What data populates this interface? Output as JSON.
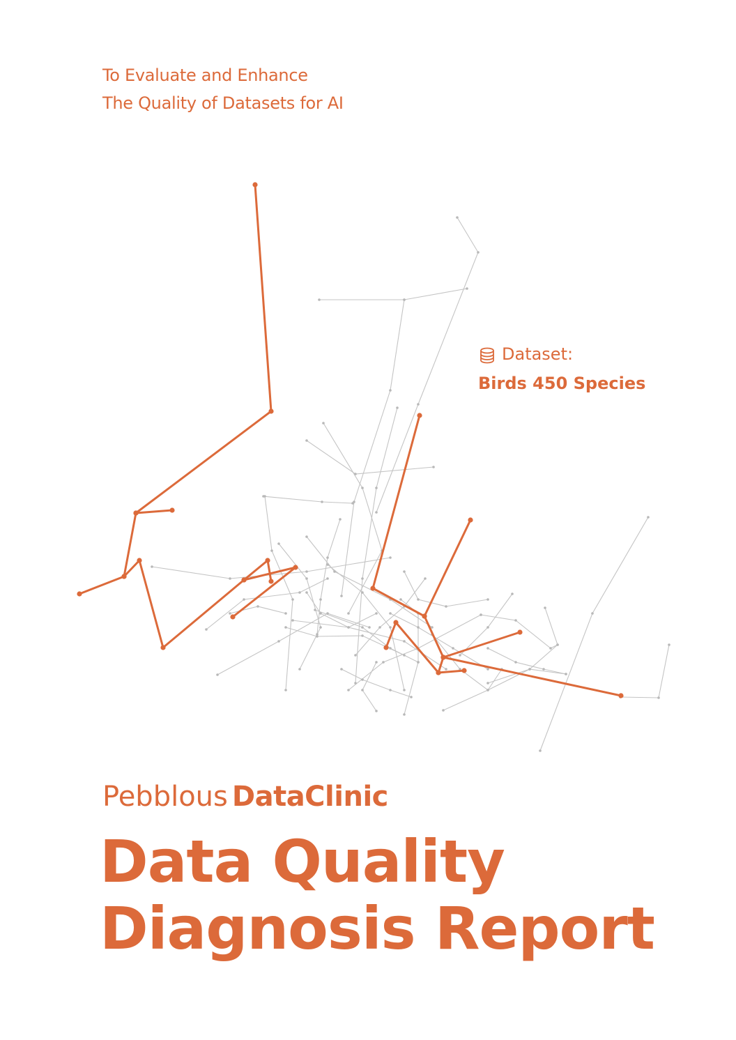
{
  "tagline": {
    "line1": "To Evaluate and Enhance",
    "line2": "The Quality of Datasets for AI"
  },
  "dataset": {
    "label": "Dataset:",
    "name": "Birds 450 Species",
    "icon": "database-icon"
  },
  "brand": {
    "name": "Pebblous",
    "product": "DataClinic"
  },
  "report_title": {
    "line1": "Data Quality",
    "line2": "Diagnosis Report"
  },
  "colors": {
    "accent": "#dc6a3a",
    "network_gray": "#c4c4c4",
    "background": "#ffffff"
  }
}
